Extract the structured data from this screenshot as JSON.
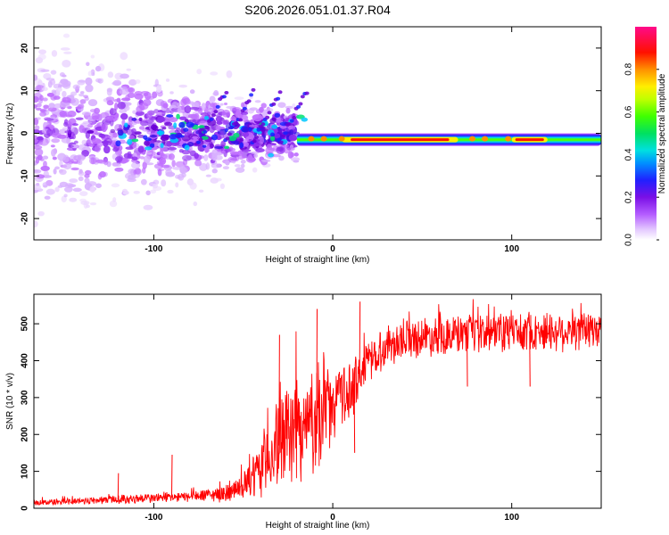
{
  "chart_data": [
    {
      "type": "heatmap",
      "title": "S206.2026.051.01.37.R04",
      "xlabel": "Height of straight line (km)",
      "ylabel": "Frequency (Hz)",
      "xlim": [
        -167,
        150
      ],
      "ylim": [
        -25,
        25
      ],
      "x_ticks": [
        -100,
        0,
        100
      ],
      "x_tick_labels": [
        "-100",
        "0",
        "100"
      ],
      "y_ticks": [
        -20,
        -10,
        0,
        10,
        20
      ],
      "y_tick_labels": [
        "-20",
        "-10",
        "0",
        "10",
        "20"
      ],
      "colorbar": {
        "label": "Normalized spectral amplitude",
        "range": [
          0,
          1
        ],
        "ticks": [
          0,
          0.2,
          0.4,
          0.6,
          0.8
        ],
        "tick_labels": [
          "0.0",
          "0.2",
          "0.4",
          "0.6",
          "0.8"
        ],
        "colors": [
          "#ffffff",
          "#c44bff",
          "#6a00d6",
          "#1a20ff",
          "#00c8ff",
          "#00e070",
          "#50ff00",
          "#f0ff00",
          "#ff9000",
          "#ff1000",
          "#ff0a7a"
        ]
      },
      "features": {
        "scatter_region_x": [
          -167,
          -20
        ],
        "scatter_region_freq_hz": [
          -25,
          25
        ],
        "ridge_x": [
          -20,
          150
        ],
        "ridge_freq_hz": -1.5,
        "ridge_peak_x": [
          5,
          70
        ],
        "ridge_peak_amplitude": 0.95,
        "ridge_peak_x2": [
          100,
          120
        ],
        "ridge_peak2_amplitude": 0.9
      }
    },
    {
      "type": "line",
      "xlabel": "Height of straight line (km)",
      "ylabel": "SNR (10 * v/v)",
      "xlim": [
        -167,
        150
      ],
      "ylim": [
        0,
        580
      ],
      "x_ticks": [
        -100,
        0,
        100
      ],
      "x_tick_labels": [
        "-100",
        "0",
        "100"
      ],
      "y_ticks": [
        0,
        100,
        200,
        300,
        400,
        500
      ],
      "y_tick_labels": [
        "0",
        "100",
        "200",
        "300",
        "400",
        "500"
      ],
      "color": "#ff0000",
      "series": [
        {
          "name": "SNR",
          "x": [
            -167,
            -150,
            -130,
            -115,
            -100,
            -85,
            -70,
            -60,
            -50,
            -45,
            -40,
            -35,
            -30,
            -25,
            -20,
            -15,
            -10,
            -5,
            0,
            5,
            10,
            15,
            20,
            30,
            40,
            60,
            80,
            100,
            120,
            150
          ],
          "mean": [
            15,
            18,
            22,
            25,
            28,
            30,
            35,
            40,
            55,
            80,
            110,
            150,
            170,
            200,
            220,
            210,
            250,
            260,
            280,
            300,
            320,
            360,
            400,
            440,
            460,
            470,
            470,
            480,
            480,
            480
          ],
          "spread": [
            8,
            10,
            12,
            15,
            15,
            15,
            20,
            25,
            40,
            60,
            90,
            120,
            140,
            150,
            160,
            160,
            160,
            140,
            110,
            100,
            90,
            80,
            70,
            60,
            60,
            60,
            60,
            60,
            60,
            60
          ]
        }
      ],
      "spikes": [
        {
          "x": -120,
          "y": 95
        },
        {
          "x": -90,
          "y": 145
        },
        {
          "x": -30,
          "y": 470
        },
        {
          "x": -9,
          "y": 540
        },
        {
          "x": 12,
          "y": 150
        },
        {
          "x": 15,
          "y": 560
        },
        {
          "x": 75,
          "y": 330
        },
        {
          "x": 110,
          "y": 330
        }
      ]
    }
  ]
}
